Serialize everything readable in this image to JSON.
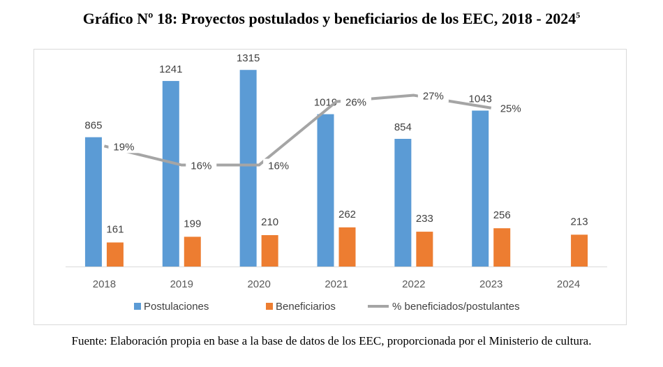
{
  "title_main": "Gráfico Nº 18: Proyectos postulados y beneficiarios de los EEC, 2018 - 2024",
  "title_sup": "5",
  "source": "Fuente: Elaboración propia en base a la base de datos de los EEC, proporcionada por el Ministerio de cultura.",
  "colors": {
    "postulaciones": "#5b9bd5",
    "beneficiarios": "#ed7d31",
    "porcentaje": "#a5a5a5",
    "axis": "#d9d9d9"
  },
  "chart_data": {
    "type": "bar",
    "title": "Gráfico Nº 18: Proyectos postulados y beneficiarios de los EEC, 2018 - 2024",
    "categories": [
      "2018",
      "2019",
      "2020",
      "2021",
      "2022",
      "2023",
      "2024"
    ],
    "series": [
      {
        "name": "Postulaciones",
        "type": "bar",
        "values": [
          865,
          1241,
          1315,
          1019,
          854,
          1043,
          null
        ],
        "labels": [
          "865",
          "1241",
          "1315",
          "1019",
          "854",
          "1043",
          ""
        ]
      },
      {
        "name": "Beneficiarios",
        "type": "bar",
        "values": [
          161,
          199,
          210,
          262,
          233,
          256,
          213
        ],
        "labels": [
          "161",
          "199",
          "210",
          "262",
          "233",
          "256",
          "213"
        ]
      },
      {
        "name": "% beneficiados/postulantes",
        "type": "line",
        "values": [
          19,
          16,
          16,
          26,
          27,
          25,
          null
        ],
        "labels": [
          "19%",
          "16%",
          "16%",
          "26%",
          "27%",
          "25%",
          ""
        ]
      }
    ],
    "ylim": [
      0,
      1400
    ],
    "y2lim": [
      0,
      33
    ],
    "legend_position": "bottom",
    "grid": false
  }
}
